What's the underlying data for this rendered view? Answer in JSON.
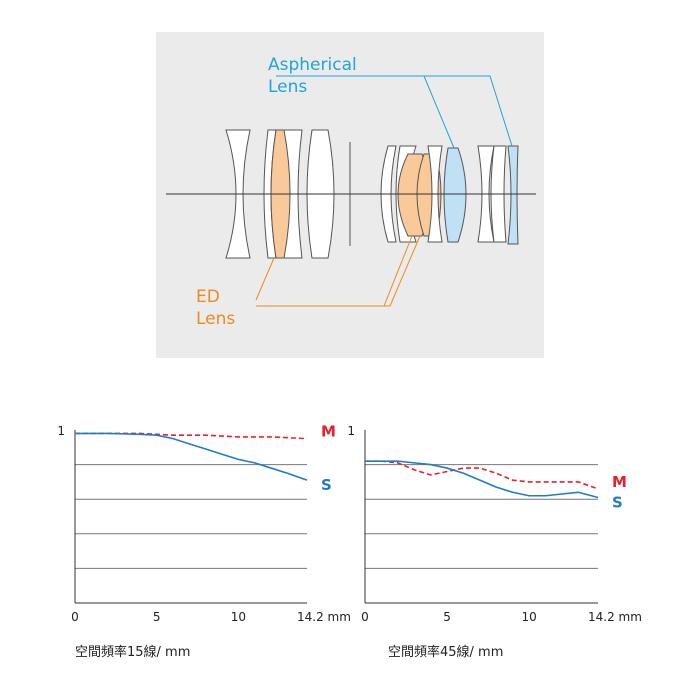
{
  "diagram": {
    "aspherical_label_line1": "Aspherical",
    "aspherical_label_line2": "Lens",
    "ed_label_line1": "ED",
    "ed_label_line2": "Lens",
    "colors": {
      "panel": "#ebebeb",
      "aspherical": "#1ba6dc",
      "aspherical_fill": "#bfe0f5",
      "ed": "#f08a1e",
      "ed_fill": "#f9c99a"
    }
  },
  "chart_data": [
    {
      "type": "line",
      "caption": "空間頻率15線/ mm",
      "x_ticks": [
        "0",
        "5",
        "10",
        "14.2 mm"
      ],
      "y_tick_label": "1",
      "xlim": [
        0,
        14.2
      ],
      "ylim": [
        0,
        1
      ],
      "series": [
        {
          "name": "M",
          "color": "#e8202a",
          "dashed": true,
          "x": [
            0,
            2,
            4,
            6,
            8,
            10,
            12,
            14.2
          ],
          "y": [
            0.98,
            0.98,
            0.98,
            0.97,
            0.97,
            0.96,
            0.96,
            0.95
          ]
        },
        {
          "name": "S",
          "color": "#1f7cc8",
          "dashed": false,
          "x": [
            0,
            2,
            4,
            5,
            6,
            7,
            8,
            9,
            10,
            11,
            12,
            13,
            14.2
          ],
          "y": [
            0.98,
            0.98,
            0.975,
            0.97,
            0.95,
            0.92,
            0.89,
            0.86,
            0.83,
            0.81,
            0.78,
            0.75,
            0.71
          ]
        }
      ]
    },
    {
      "type": "line",
      "caption": "空間頻率45線/ mm",
      "x_ticks": [
        "0",
        "5",
        "10",
        "14.2 mm"
      ],
      "y_tick_label": "1",
      "xlim": [
        0,
        14.2
      ],
      "ylim": [
        0,
        1
      ],
      "series": [
        {
          "name": "M",
          "color": "#e8202a",
          "dashed": true,
          "x": [
            0,
            1,
            2,
            3,
            4,
            5,
            6,
            7,
            8,
            9,
            10,
            11,
            12,
            13,
            14.2
          ],
          "y": [
            0.82,
            0.82,
            0.81,
            0.77,
            0.74,
            0.76,
            0.78,
            0.78,
            0.75,
            0.71,
            0.7,
            0.7,
            0.7,
            0.7,
            0.66
          ]
        },
        {
          "name": "S",
          "color": "#1f7cc8",
          "dashed": false,
          "x": [
            0,
            1,
            2,
            3,
            4,
            5,
            6,
            7,
            8,
            9,
            10,
            11,
            12,
            13,
            14.2
          ],
          "y": [
            0.82,
            0.82,
            0.82,
            0.81,
            0.8,
            0.78,
            0.75,
            0.71,
            0.67,
            0.64,
            0.62,
            0.62,
            0.63,
            0.64,
            0.61
          ]
        }
      ]
    }
  ]
}
